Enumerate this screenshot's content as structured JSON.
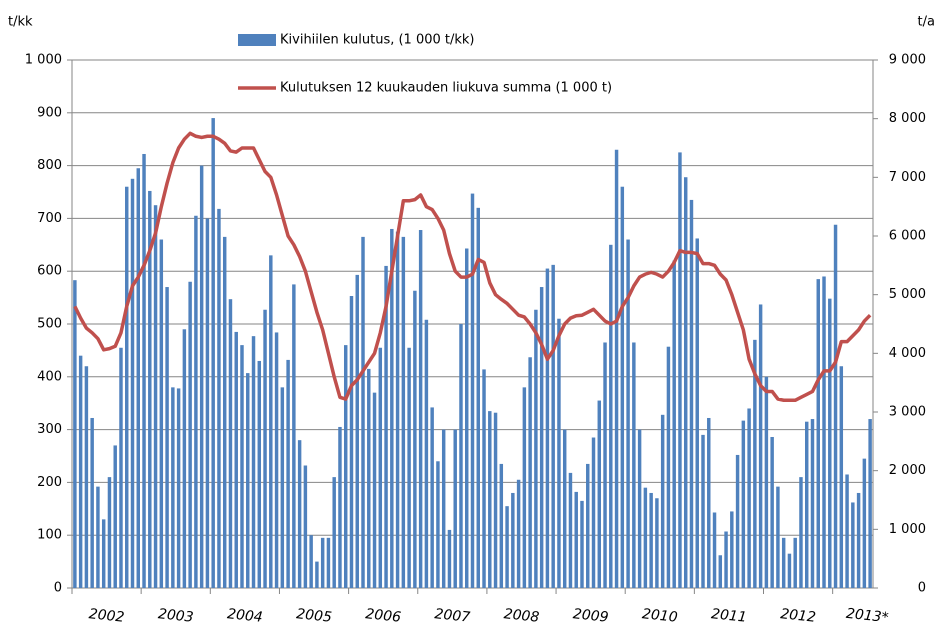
{
  "chart_data": {
    "type": "bar_line",
    "y_label": "t/kk",
    "y2_label": "t/a",
    "categories": [
      "2002",
      null,
      null,
      null,
      null,
      null,
      null,
      null,
      null,
      null,
      null,
      null,
      "2003",
      null,
      null,
      null,
      null,
      null,
      null,
      null,
      null,
      null,
      null,
      null,
      "2004",
      null,
      null,
      null,
      null,
      null,
      null,
      null,
      null,
      null,
      null,
      null,
      "2005",
      null,
      null,
      null,
      null,
      null,
      null,
      null,
      null,
      null,
      null,
      null,
      "2006",
      null,
      null,
      null,
      null,
      null,
      null,
      null,
      null,
      null,
      null,
      null,
      "2007",
      null,
      null,
      null,
      null,
      null,
      null,
      null,
      null,
      null,
      null,
      null,
      "2008",
      null,
      null,
      null,
      null,
      null,
      null,
      null,
      null,
      null,
      null,
      null,
      "2009",
      null,
      null,
      null,
      null,
      null,
      null,
      null,
      null,
      null,
      null,
      null,
      "2010",
      null,
      null,
      null,
      null,
      null,
      null,
      null,
      null,
      null,
      null,
      null,
      "2011",
      null,
      null,
      null,
      null,
      null,
      null,
      null,
      null,
      null,
      null,
      null,
      "2012",
      null,
      null,
      null,
      null,
      null,
      null,
      null,
      null,
      null,
      null,
      null,
      "2013*",
      null,
      null,
      null,
      null,
      null,
      null
    ],
    "series": [
      {
        "name": "Kivihiilen kulutus, (1 000 t/kk)",
        "type": "bar",
        "color": "#4f81bd",
        "values": [
          583,
          440,
          420,
          322,
          192,
          130,
          210,
          270,
          455,
          760,
          775,
          795,
          822,
          752,
          725,
          660,
          570,
          380,
          378,
          490,
          580,
          705,
          800,
          700,
          890,
          718,
          665,
          547,
          485,
          460,
          407,
          477,
          430,
          527,
          630,
          484,
          380,
          432,
          575,
          280,
          232,
          100,
          50,
          95,
          95,
          210,
          305,
          460,
          553,
          593,
          665,
          415,
          370,
          455,
          610,
          680,
          675,
          665,
          455,
          563,
          678,
          508,
          342,
          240,
          300,
          110,
          300,
          500,
          643,
          747,
          720,
          414,
          335,
          332,
          235,
          155,
          180,
          205,
          380,
          437,
          527,
          570,
          605,
          612,
          510,
          300,
          218,
          182,
          165,
          235,
          285,
          355,
          465,
          650,
          830,
          760,
          660,
          465,
          300,
          190,
          180,
          170,
          328,
          457,
          620,
          825,
          778,
          735,
          662,
          290,
          322,
          143,
          62,
          107,
          145,
          252,
          317,
          340,
          470,
          537,
          400,
          286,
          192,
          95,
          65,
          95,
          210,
          315,
          320,
          585,
          590,
          548,
          688,
          420,
          215,
          162,
          180,
          245,
          320
        ]
      },
      {
        "name": "Kulutuksen 12 kuukauden liukuva summa (1 000 t)",
        "type": "line",
        "axis": "y2",
        "color": "#c0504d",
        "values": [
          4800,
          4600,
          4430,
          4350,
          4250,
          4060,
          4080,
          4120,
          4350,
          4800,
          5150,
          5300,
          5500,
          5750,
          6050,
          6500,
          6900,
          7250,
          7500,
          7650,
          7750,
          7700,
          7680,
          7700,
          7700,
          7650,
          7580,
          7450,
          7430,
          7500,
          7500,
          7500,
          7300,
          7100,
          7000,
          6700,
          6350,
          6000,
          5850,
          5650,
          5400,
          5050,
          4700,
          4400,
          4000,
          3600,
          3250,
          3220,
          3450,
          3550,
          3700,
          3850,
          4000,
          4350,
          4800,
          5400,
          6000,
          6600,
          6600,
          6620,
          6700,
          6500,
          6450,
          6300,
          6100,
          5700,
          5400,
          5300,
          5300,
          5350,
          5600,
          5550,
          5200,
          5000,
          4920,
          4850,
          4750,
          4650,
          4620,
          4500,
          4350,
          4150,
          3900,
          4050,
          4300,
          4500,
          4600,
          4640,
          4650,
          4700,
          4750,
          4650,
          4550,
          4500,
          4550,
          4800,
          4950,
          5150,
          5300,
          5350,
          5380,
          5350,
          5300,
          5400,
          5550,
          5750,
          5720,
          5720,
          5700,
          5530,
          5530,
          5500,
          5350,
          5250,
          5000,
          4700,
          4400,
          3900,
          3650,
          3450,
          3350,
          3350,
          3220,
          3200,
          3200,
          3200,
          3250,
          3300,
          3350,
          3550,
          3700,
          3700,
          3850,
          4200,
          4200,
          4300,
          4400,
          4550,
          4650
        ]
      }
    ],
    "ylim": [
      0,
      1000
    ],
    "yticks": [
      0,
      100,
      200,
      300,
      400,
      500,
      600,
      700,
      800,
      900,
      {
        "value": 1000,
        "label": "1 000"
      }
    ],
    "y2lim": [
      0,
      9000
    ],
    "y2ticks": [
      0,
      {
        "value": 1000,
        "label": "1 000"
      },
      {
        "value": 2000,
        "label": "2 000"
      },
      {
        "value": 3000,
        "label": "3 000"
      },
      {
        "value": 4000,
        "label": "4 000"
      },
      {
        "value": 5000,
        "label": "5 000"
      },
      {
        "value": 6000,
        "label": "6 000"
      },
      {
        "value": 7000,
        "label": "7 000"
      },
      {
        "value": 8000,
        "label": "8 000"
      },
      {
        "value": 9000,
        "label": "9 000"
      }
    ],
    "grid": true
  }
}
